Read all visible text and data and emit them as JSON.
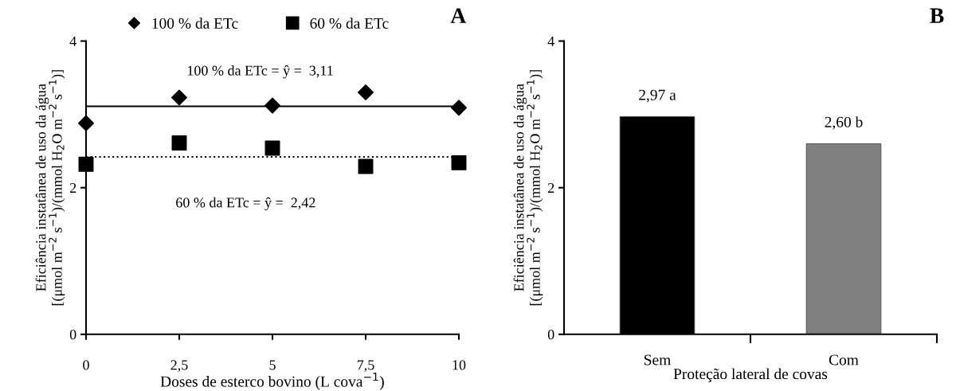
{
  "chart_data": [
    {
      "type": "scatter",
      "title": "A",
      "xlabel": "Doses de esterco bovino (L cova$^{−1}$)",
      "ylabel": "Eficiência instatânea de uso da água\n[(μmol m$^{−2}$ s$^{−1}$)/(mmol H$_{2}$O m$^{−2}$ s$^{−1}$)]",
      "series": [
        {
          "name": "100 % da ETc",
          "color": "#000000",
          "marker": "diamond",
          "x": [
            0,
            2.5,
            5,
            7.5,
            10
          ],
          "values": [
            2.88,
            3.23,
            3.12,
            3.3,
            3.09
          ]
        },
        {
          "name": "60 % da ETc",
          "color": "#000000",
          "marker": "square",
          "x": [
            0,
            2.5,
            5,
            7.5,
            10
          ],
          "values": [
            2.32,
            2.61,
            2.54,
            2.29,
            2.34
          ]
        }
      ],
      "ref_lines": [
        {
          "axis": "y",
          "value": 3.11,
          "label": "100 % da ETc = ŷ =  3,11",
          "color": "#000000",
          "line_style": "solid"
        },
        {
          "axis": "y",
          "value": 2.42,
          "label": "60 % da ETc = ŷ =  2,42",
          "color": "#000000",
          "line_style": "dotted"
        }
      ],
      "xlim": [
        0,
        10
      ],
      "xticks": [
        0,
        {
          "value": 2.5,
          "label": "2,5"
        },
        5,
        {
          "value": 7.5,
          "label": "7,5"
        },
        10
      ],
      "ylim": [
        0,
        4
      ],
      "yticks": [
        0,
        2,
        4
      ],
      "grid": false,
      "legend": "top"
    },
    {
      "type": "bar",
      "title": "B",
      "xlabel": "Proteção lateral de covas",
      "ylabel": "Eficiência instatânea de uso da água\n[(μmol m$^{−2}$ s$^{−1}$)/(mmol H$_{2}$O m$^{−2}$ s$^{−1}$)]",
      "categories": [
        "Sem",
        "Com"
      ],
      "values": [
        2.97,
        2.6
      ],
      "colors": [
        "#000000",
        "#808080"
      ],
      "value_labels": [
        "2,97 a",
        "2,60 b"
      ],
      "ylim": [
        0,
        4
      ],
      "yticks": [
        0,
        2,
        4
      ],
      "grid": false
    }
  ]
}
